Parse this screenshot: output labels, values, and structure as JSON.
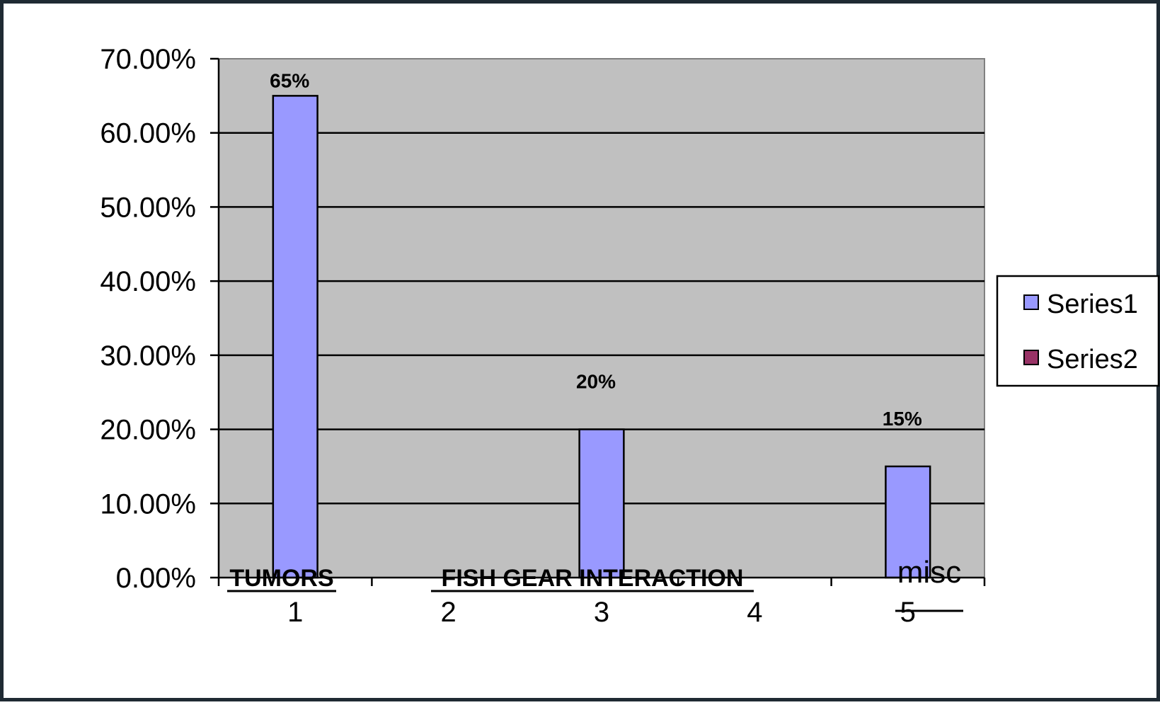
{
  "chart_data": {
    "type": "bar",
    "categories": [
      "1",
      "2",
      "3",
      "4",
      "5"
    ],
    "series": [
      {
        "name": "Series1",
        "values": [
          0.65,
          null,
          0.2,
          null,
          0.15
        ],
        "color": "#9999ff"
      },
      {
        "name": "Series2",
        "values": [
          null,
          null,
          null,
          null,
          null
        ],
        "color": "#993366"
      }
    ],
    "data_labels": [
      "65%",
      "",
      "20%",
      "",
      "15%"
    ],
    "category_annotations": [
      {
        "text": "TUMORS",
        "style": "bold"
      },
      {
        "text": "FISH GEAR INTERACTION",
        "style": "bold"
      },
      {
        "text": "misc",
        "style": "plain"
      }
    ],
    "y_ticks": [
      "0.00%",
      "10.00%",
      "20.00%",
      "30.00%",
      "40.00%",
      "50.00%",
      "60.00%",
      "70.00%"
    ],
    "ylim": [
      0,
      0.7
    ],
    "plot_background": "#c0c0c0",
    "grid": true,
    "legend_position": "right",
    "title": "",
    "xlabel": "",
    "ylabel": ""
  }
}
